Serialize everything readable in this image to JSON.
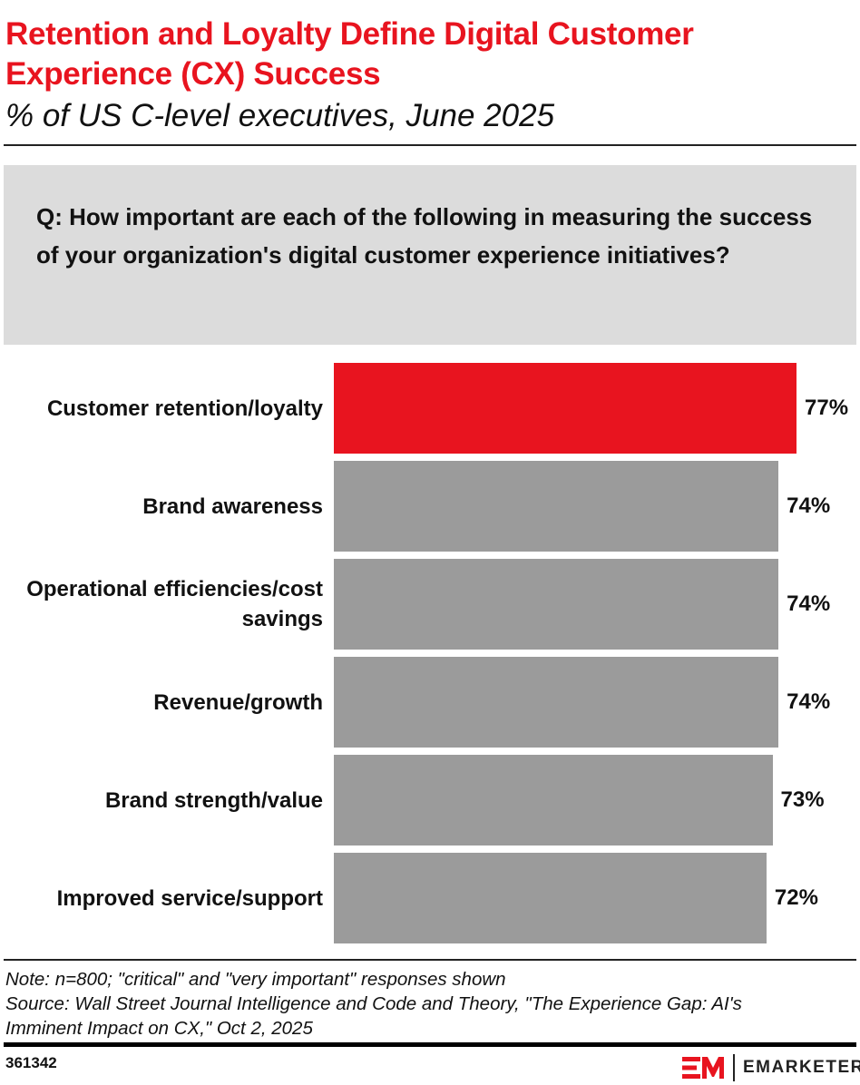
{
  "chart_data": {
    "type": "bar",
    "orientation": "horizontal",
    "title": "Retention and Loyalty Define Digital Customer Experience (CX) Success",
    "subtitle": "% of US C-level executives, June 2025",
    "question": "Q: How important are each of the following in measuring the success of your organization's digital customer experience initiatives?",
    "categories": [
      "Customer retention/loyalty",
      "Brand awareness",
      "Operational efficiencies/cost savings",
      "Revenue/growth",
      "Brand strength/value",
      "Improved service/support"
    ],
    "values": [
      77,
      74,
      74,
      74,
      73,
      72
    ],
    "value_labels": [
      "77%",
      "74%",
      "74%",
      "74%",
      "73%",
      "72%"
    ],
    "colors": {
      "highlight": "#e8141f",
      "default": "#9b9b9b"
    },
    "highlight_index": 0,
    "xlim": [
      0,
      100
    ],
    "grid": false
  },
  "footer": {
    "note": "Note: n=800; \"critical\" and \"very important\" responses shown",
    "source_line1": "Source: Wall Street Journal Intelligence and Code and Theory, \"The Experience Gap: AI's",
    "source_line2": "Imminent Impact on CX,\" Oct 2, 2025",
    "chart_id": "361342",
    "brand": "EMARKETER"
  }
}
